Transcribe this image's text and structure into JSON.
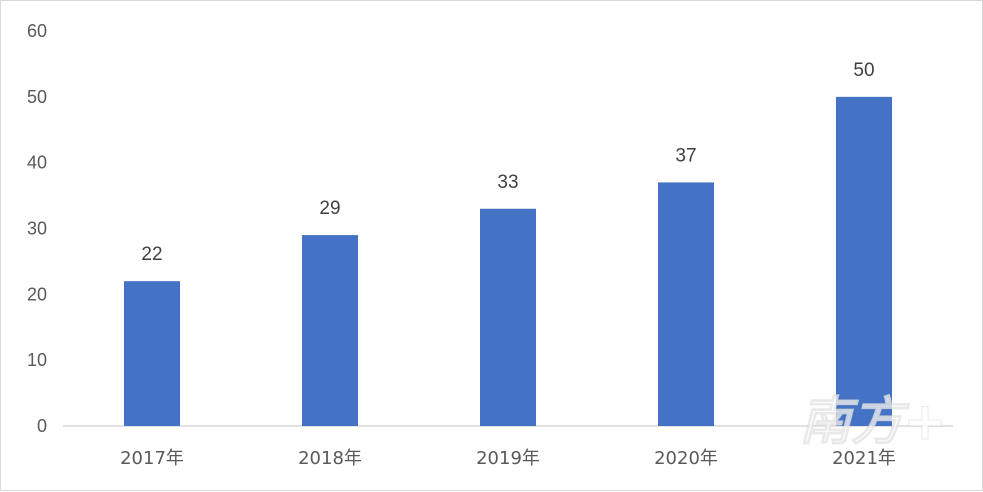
{
  "chart_data": {
    "type": "bar",
    "categories": [
      "2017年",
      "2018年",
      "2019年",
      "2020年",
      "2021年"
    ],
    "values": [
      22,
      29,
      33,
      37,
      50
    ],
    "data_labels": [
      "22",
      "29",
      "33",
      "37",
      "50"
    ],
    "yticks": [
      "0",
      "10",
      "20",
      "30",
      "40",
      "50",
      "60"
    ],
    "ylim": [
      0,
      60
    ],
    "grid": false,
    "bar_color": "#4472c4"
  },
  "watermark": {
    "text": "南方+",
    "color": "#ffffff"
  }
}
